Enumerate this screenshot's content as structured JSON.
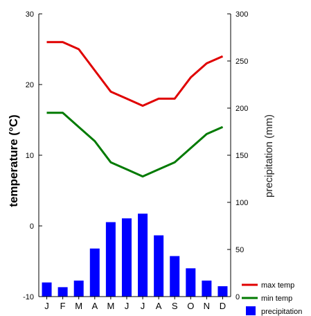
{
  "chart_data": {
    "type": "bar+line",
    "categories": [
      "J",
      "F",
      "M",
      "A",
      "M",
      "J",
      "J",
      "A",
      "S",
      "O",
      "N",
      "D"
    ],
    "y_left": {
      "label": "temperature (°C)",
      "lim": [
        -10,
        30
      ],
      "ticks": [
        "30",
        "20",
        "10",
        "0",
        "-10"
      ]
    },
    "y_right": {
      "label": "precipitation (mm)",
      "lim": [
        0,
        300
      ],
      "ticks": [
        "300",
        "250",
        "200",
        "150",
        "100",
        "50",
        "0"
      ]
    },
    "series": [
      {
        "name": "max temp",
        "kind": "line",
        "axis": "left",
        "color": "#e00000",
        "values": [
          26,
          26,
          25,
          22,
          19,
          18,
          17,
          18,
          18,
          21,
          23,
          24
        ]
      },
      {
        "name": "min temp",
        "kind": "line",
        "axis": "left",
        "color": "#007a00",
        "values": [
          16,
          16,
          14,
          12,
          9,
          8,
          7,
          8,
          9,
          11,
          13,
          14
        ]
      },
      {
        "name": "precipitation",
        "kind": "bar",
        "axis": "right",
        "color": "#0000ff",
        "values": [
          15,
          10,
          17,
          51,
          79,
          83,
          88,
          65,
          43,
          30,
          17,
          11
        ]
      }
    ],
    "legend": [
      "max temp",
      "min temp",
      "precipitation"
    ],
    "legend_position": "bottom-right",
    "grid": false
  }
}
